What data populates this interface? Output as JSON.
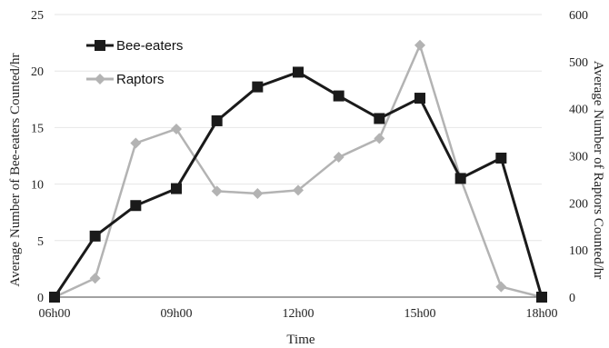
{
  "chart_data": {
    "type": "line",
    "x": [
      "06h00",
      "07h00",
      "08h00",
      "09h00",
      "10h00",
      "11h00",
      "12h00",
      "13h00",
      "14h00",
      "15h00",
      "16h00",
      "17h00",
      "18h00"
    ],
    "x_tick_labels": [
      "06h00",
      "09h00",
      "12h00",
      "15h00",
      "18h00"
    ],
    "xlabel": "Time",
    "ylabel_left": "Average Number of Bee-eaters Counted/hr",
    "ylabel_right": "Average Number of Raptors Counted/hr",
    "ylim_left": [
      0,
      25
    ],
    "ylim_right": [
      0,
      600
    ],
    "yticks_left": [
      0,
      5,
      10,
      15,
      20,
      25
    ],
    "yticks_right": [
      0,
      100,
      200,
      300,
      400,
      500,
      600
    ],
    "grid": true,
    "legend_position": "top-left",
    "series": [
      {
        "name": "Bee-eaters",
        "axis": "left",
        "color": "#1a1a1a",
        "marker": "square",
        "values": [
          0,
          5.4,
          8.1,
          9.6,
          15.6,
          18.6,
          19.9,
          17.8,
          15.8,
          17.6,
          10.5,
          12.3,
          0
        ]
      },
      {
        "name": "Raptors",
        "axis": "right",
        "color": "#b3b3b3",
        "marker": "diamond",
        "values": [
          0,
          40,
          327,
          357,
          225,
          220,
          227,
          297,
          337,
          535,
          252,
          22,
          0
        ]
      }
    ]
  }
}
